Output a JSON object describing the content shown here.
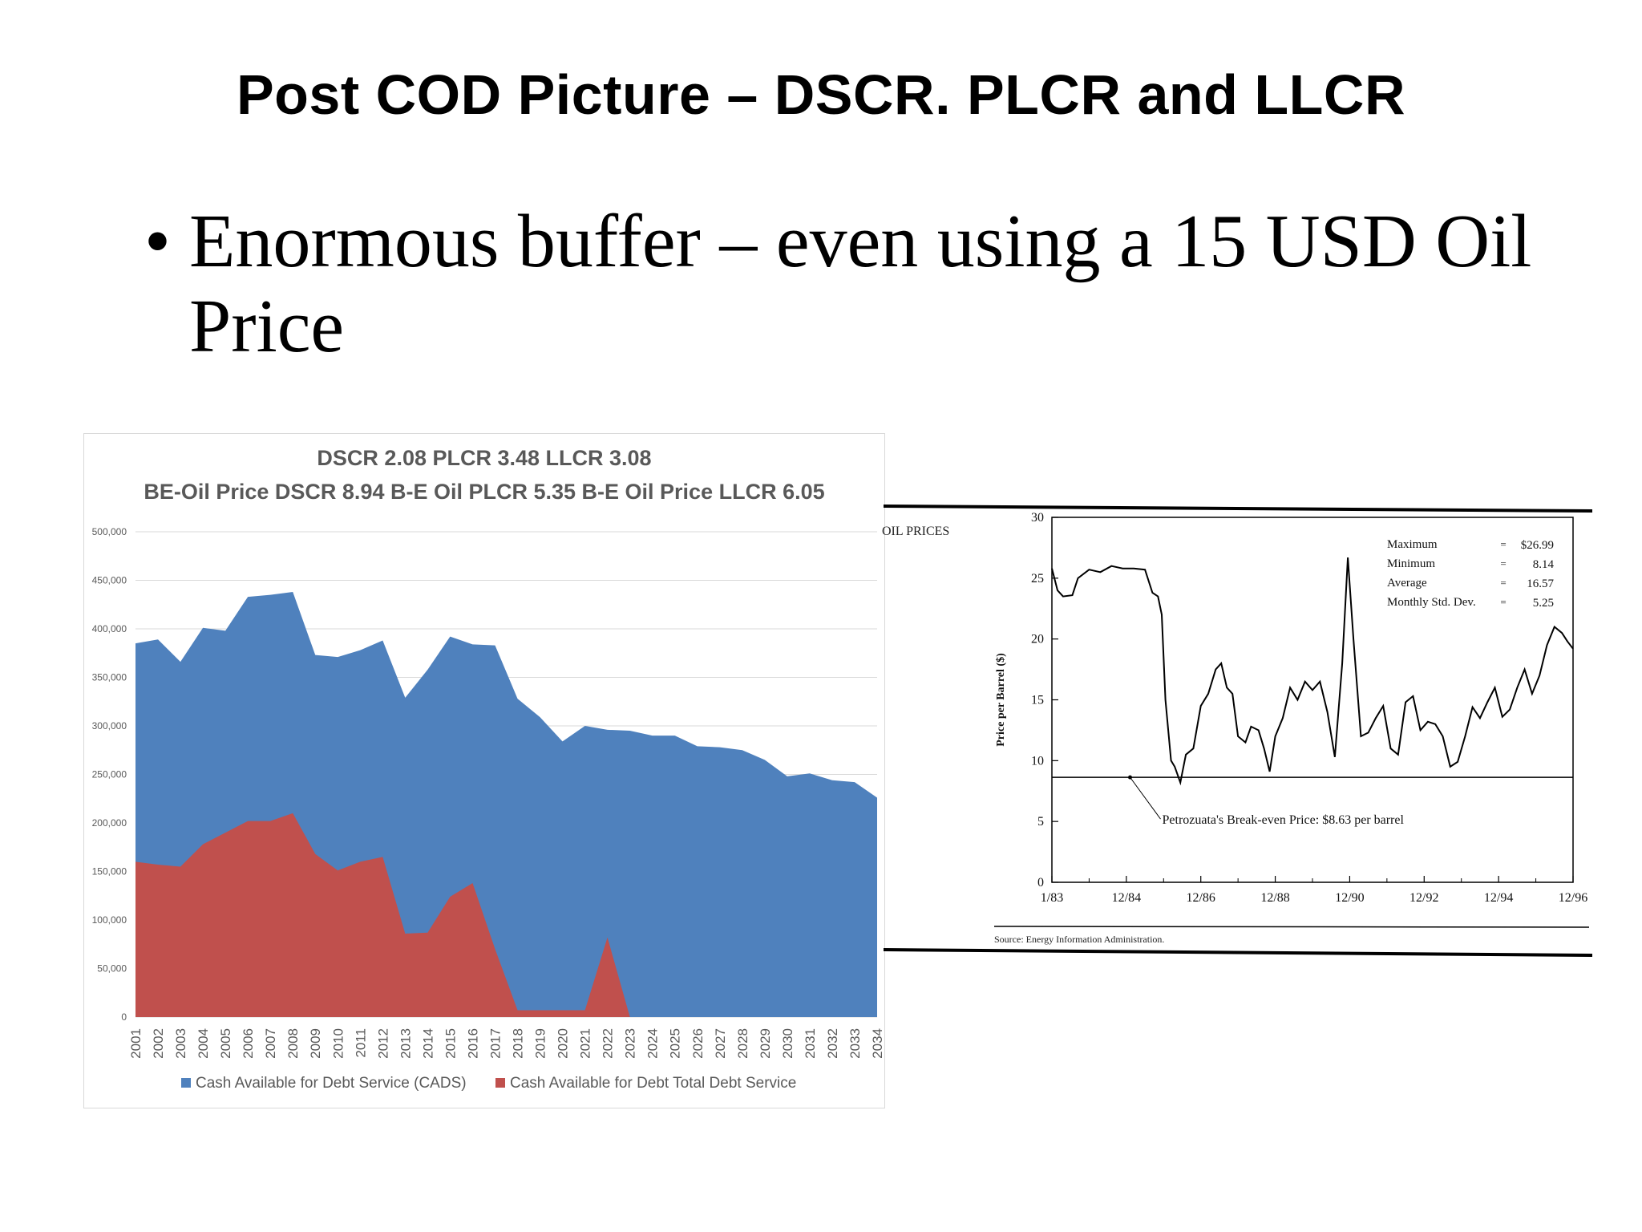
{
  "slide": {
    "title": "Post COD Picture – DSCR. PLCR and LLCR",
    "bullet": "Enormous buffer – even using a 15 USD Oil Price"
  },
  "chart_data": [
    {
      "type": "area",
      "title": "DSCR 2.08 PLCR 3.48 LLCR 3.08",
      "subtitle": "BE-Oil Price DSCR 8.94 B-E Oil PLCR 5.35 B-E Oil Price LLCR 6.05",
      "xlabel": "",
      "ylabel": "",
      "categories": [
        "2001",
        "2002",
        "2003",
        "2004",
        "2005",
        "2006",
        "2007",
        "2008",
        "2009",
        "2010",
        "2011",
        "2012",
        "2013",
        "2014",
        "2015",
        "2016",
        "2017",
        "2018",
        "2019",
        "2020",
        "2021",
        "2022",
        "2023",
        "2024",
        "2025",
        "2026",
        "2027",
        "2028",
        "2029",
        "2030",
        "2031",
        "2032",
        "2033",
        "2034"
      ],
      "ylim": [
        0,
        500000
      ],
      "yticks": [
        0,
        50000,
        100000,
        150000,
        200000,
        250000,
        300000,
        350000,
        400000,
        450000,
        500000
      ],
      "ytick_labels": [
        "0",
        "50,000",
        "100,000",
        "150,000",
        "200,000",
        "250,000",
        "300,000",
        "350,000",
        "400,000",
        "450,000",
        "500,000"
      ],
      "grid": true,
      "legend_position": "bottom",
      "series": [
        {
          "name": "Cash Available for Debt Service (CADS)",
          "color": "#4f81bd",
          "values": [
            385000,
            389000,
            366000,
            401000,
            398000,
            433000,
            435000,
            438000,
            373000,
            371000,
            378000,
            388000,
            329000,
            358000,
            392000,
            384000,
            383000,
            328000,
            309000,
            284000,
            300000,
            296000,
            295000,
            290000,
            290000,
            279000,
            278000,
            275000,
            265000,
            248000,
            251000,
            244000,
            242000,
            226000
          ]
        },
        {
          "name": "Cash Available for Debt Total Debt Service",
          "color": "#c0504d",
          "values": [
            160000,
            157000,
            155000,
            178000,
            190000,
            202000,
            202000,
            210000,
            168000,
            151000,
            160000,
            165000,
            86000,
            87000,
            124000,
            138000,
            70000,
            7000,
            7000,
            7000,
            7000,
            82000,
            0,
            0,
            0,
            0,
            0,
            0,
            0,
            0,
            0,
            0,
            0,
            0
          ]
        }
      ]
    },
    {
      "type": "line",
      "title": "OIL PRICES",
      "ylabel": "Price per Barrel ($)",
      "xlabel": "",
      "ylim": [
        0,
        30
      ],
      "yticks": [
        0,
        5,
        10,
        15,
        20,
        25,
        30
      ],
      "xlim": [
        1983.0,
        1997.0
      ],
      "xtick_labels": [
        "1/83",
        "12/84",
        "12/86",
        "12/88",
        "12/90",
        "12/92",
        "12/94",
        "12/96"
      ],
      "xtick_values": [
        1983.0,
        1985.0,
        1987.0,
        1989.0,
        1991.0,
        1993.0,
        1995.0,
        1997.0
      ],
      "stats": [
        {
          "label": "Maximum",
          "value": "$26.99"
        },
        {
          "label": "Minimum",
          "value": "8.14"
        },
        {
          "label": "Average",
          "value": "16.57"
        },
        {
          "label": "Monthly Std. Dev.",
          "value": "5.25"
        }
      ],
      "break_even": {
        "value": 8.63,
        "label": "Petrozuata's Break-even Price: $8.63 per barrel"
      },
      "source": "Source: Energy Information Administration.",
      "series": [
        {
          "name": "",
          "x": [
            1983.0,
            1983.15,
            1983.3,
            1983.55,
            1983.7,
            1984.0,
            1984.3,
            1984.6,
            1984.9,
            1985.2,
            1985.5,
            1985.7,
            1985.85,
            1985.95,
            1986.05,
            1986.2,
            1986.3,
            1986.45,
            1986.6,
            1986.8,
            1987.0,
            1987.2,
            1987.4,
            1987.55,
            1987.7,
            1987.85,
            1988.0,
            1988.2,
            1988.35,
            1988.55,
            1988.7,
            1988.85,
            1989.0,
            1989.2,
            1989.4,
            1989.6,
            1989.8,
            1990.0,
            1990.2,
            1990.4,
            1990.6,
            1990.8,
            1990.95,
            1991.1,
            1991.3,
            1991.5,
            1991.7,
            1991.9,
            1992.1,
            1992.3,
            1992.5,
            1992.7,
            1992.9,
            1993.1,
            1993.3,
            1993.5,
            1993.7,
            1993.9,
            1994.1,
            1994.3,
            1994.5,
            1994.7,
            1994.9,
            1995.1,
            1995.3,
            1995.5,
            1995.7,
            1995.9,
            1996.1,
            1996.3,
            1996.5,
            1996.7,
            1996.85,
            1997.0
          ],
          "y": [
            25.8,
            24.0,
            23.5,
            23.6,
            25.0,
            25.7,
            25.5,
            26.0,
            25.8,
            25.8,
            25.7,
            23.8,
            23.5,
            22.0,
            15.0,
            10.0,
            9.5,
            8.2,
            10.5,
            11.0,
            14.5,
            15.5,
            17.5,
            18.0,
            16.0,
            15.5,
            12.0,
            11.5,
            12.8,
            12.5,
            11.0,
            9.1,
            12.0,
            13.5,
            16.0,
            15.0,
            16.5,
            15.8,
            16.5,
            14.0,
            10.3,
            18.0,
            26.7,
            20.0,
            12.0,
            12.3,
            13.5,
            14.5,
            11.0,
            10.5,
            14.8,
            15.3,
            12.5,
            13.2,
            13.0,
            12.0,
            9.5,
            9.9,
            12.0,
            14.4,
            13.5,
            14.8,
            16.0,
            13.6,
            14.2,
            16.0,
            17.5,
            15.5,
            17.0,
            19.5,
            21.0,
            20.5,
            19.8,
            19.2
          ]
        }
      ]
    }
  ]
}
